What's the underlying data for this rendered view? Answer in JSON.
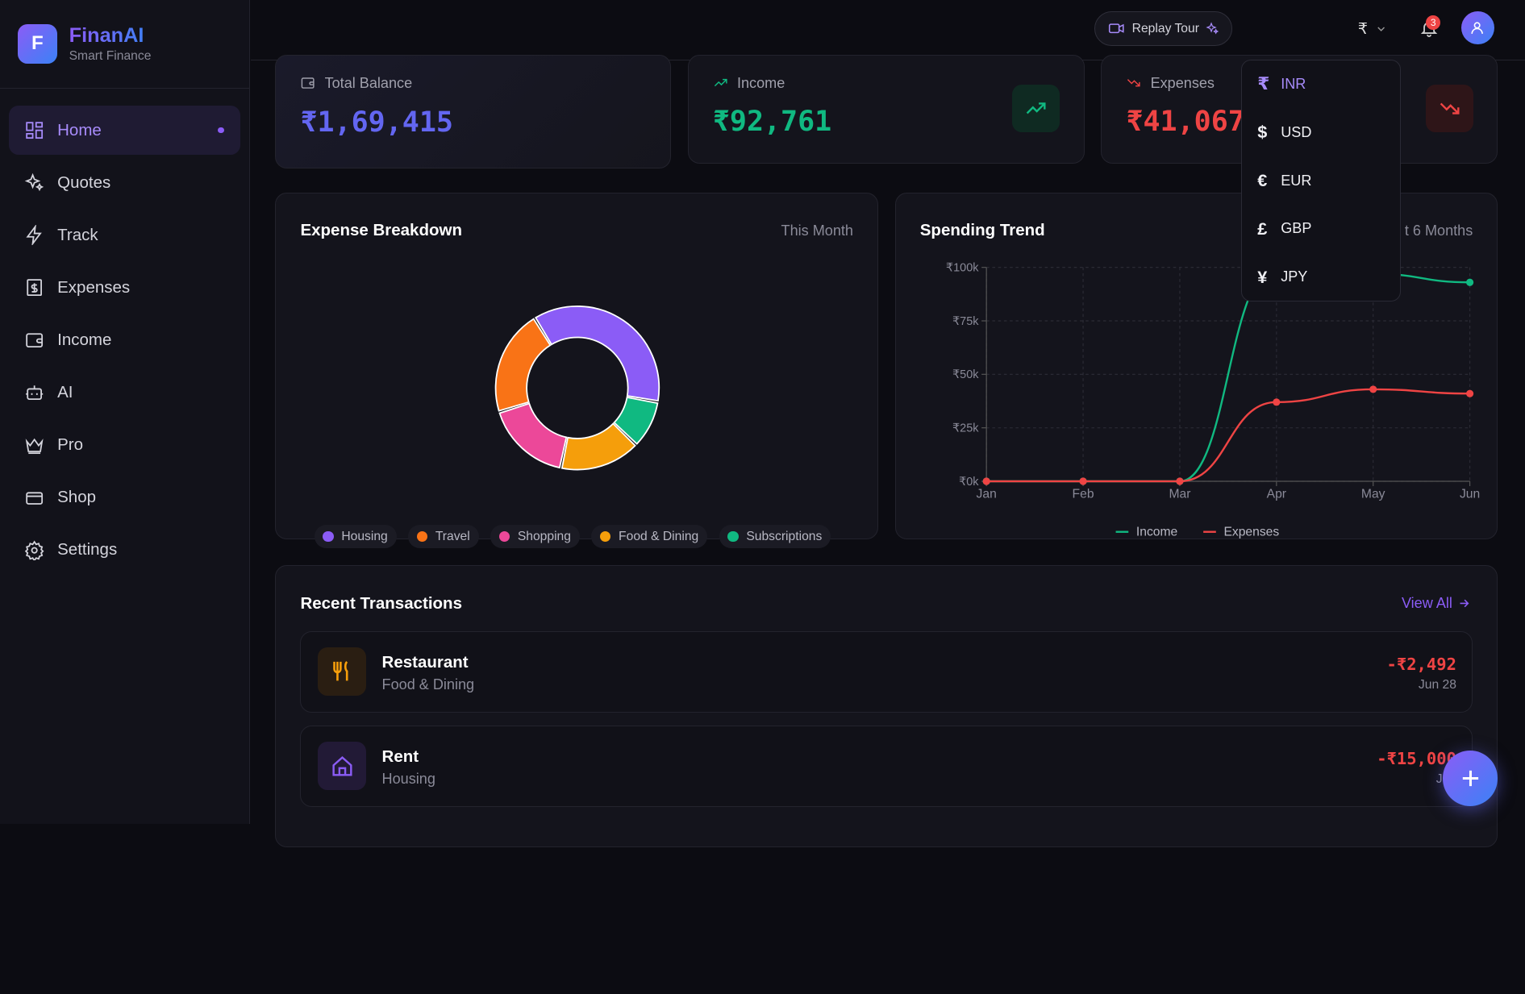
{
  "brand": {
    "name": "FinanAI",
    "subtitle": "Smart Finance",
    "logo_letter": "F"
  },
  "nav": [
    {
      "label": "Home",
      "icon": "grid-icon",
      "active": true
    },
    {
      "label": "Quotes",
      "icon": "sparkle-icon"
    },
    {
      "label": "Track",
      "icon": "bolt-icon"
    },
    {
      "label": "Expenses",
      "icon": "receipt-icon"
    },
    {
      "label": "Income",
      "icon": "wallet-icon"
    },
    {
      "label": "AI",
      "icon": "robot-icon"
    },
    {
      "label": "Pro",
      "icon": "crown-icon"
    },
    {
      "label": "Shop",
      "icon": "card-icon"
    },
    {
      "label": "Settings",
      "icon": "gear-icon"
    }
  ],
  "topbar": {
    "tour_label": "Replay Tour",
    "currency_symbol": "₹",
    "notification_count": "3"
  },
  "stats": {
    "balance": {
      "label": "Total Balance",
      "value": "₹1,69,415",
      "color": "#6366f1"
    },
    "income": {
      "label": "Income",
      "value": "₹92,761",
      "color": "#10b981"
    },
    "expenses": {
      "label": "Expenses",
      "value": "₹41,067",
      "color": "#ef4444"
    }
  },
  "currency_menu": [
    {
      "symbol": "₹",
      "code": "INR",
      "selected": true
    },
    {
      "symbol": "$",
      "code": "USD"
    },
    {
      "symbol": "€",
      "code": "EUR"
    },
    {
      "symbol": "£",
      "code": "GBP"
    },
    {
      "symbol": "¥",
      "code": "JPY"
    }
  ],
  "breakdown": {
    "title": "Expense Breakdown",
    "period": "This Month"
  },
  "trend": {
    "title": "Spending Trend",
    "period": "t 6 Months"
  },
  "chart_data": [
    {
      "type": "pie",
      "title": "Expense Breakdown",
      "categories": [
        "Housing",
        "Subscriptions",
        "Food & Dining",
        "Shopping",
        "Travel"
      ],
      "values": [
        36.5,
        9.5,
        16,
        17,
        21
      ],
      "colors": [
        "#8b5cf6",
        "#10b981",
        "#f59e0b",
        "#ec4899",
        "#f97316"
      ],
      "legend": [
        "Housing",
        "Travel",
        "Shopping",
        "Food & Dining",
        "Subscriptions"
      ],
      "legend_colors": [
        "#8b5cf6",
        "#f97316",
        "#ec4899",
        "#f59e0b",
        "#10b981"
      ]
    },
    {
      "type": "line",
      "title": "Spending Trend",
      "categories": [
        "Jan",
        "Feb",
        "Mar",
        "Apr",
        "May",
        "Jun"
      ],
      "yticks": [
        "₹0k",
        "₹25k",
        "₹50k",
        "₹75k",
        "₹100k"
      ],
      "ylim": [
        0,
        100
      ],
      "series": [
        {
          "name": "Income",
          "color": "#10b981",
          "values": [
            0,
            0,
            0,
            100,
            97,
            93
          ]
        },
        {
          "name": "Expenses",
          "color": "#ef4444",
          "values": [
            0,
            0,
            0,
            37,
            43,
            41
          ]
        }
      ]
    }
  ],
  "transactions": {
    "title": "Recent Transactions",
    "view_all": "View All",
    "items": [
      {
        "name": "Restaurant",
        "category": "Food & Dining",
        "amount": "-₹2,492",
        "date": "Jun 28",
        "icon": "utensils-icon",
        "color": "#f59e0b"
      },
      {
        "name": "Rent",
        "category": "Housing",
        "amount": "-₹15,000",
        "date": "Jun",
        "icon": "home-icon",
        "color": "#8b5cf6"
      }
    ]
  }
}
